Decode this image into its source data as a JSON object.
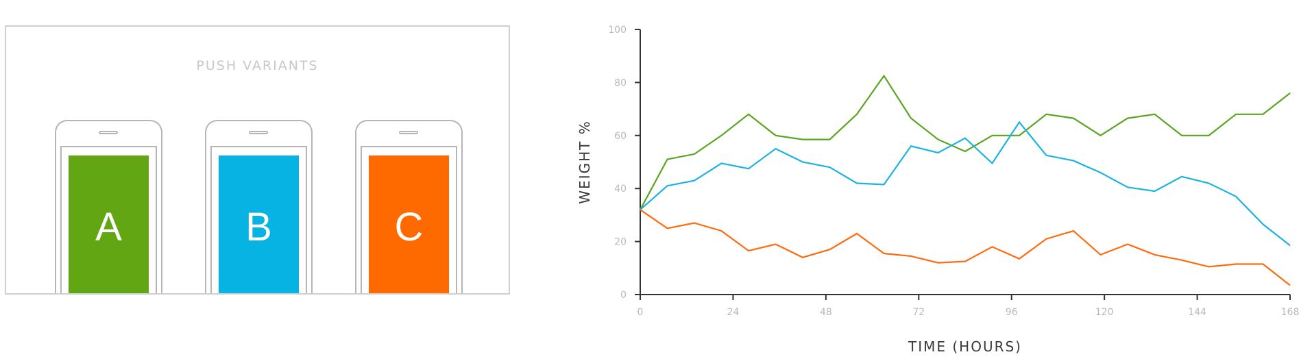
{
  "variants_panel": {
    "title": "PUSH VARIANTS",
    "variants": [
      {
        "label": "A",
        "color": "#62a613"
      },
      {
        "label": "B",
        "color": "#06b3e2"
      },
      {
        "label": "C",
        "color": "#ff6a00"
      }
    ]
  },
  "chart_data": {
    "type": "line",
    "xlabel": "TIME (HOURS)",
    "ylabel": "WEIGHT %",
    "xlim": [
      0,
      168
    ],
    "ylim": [
      0,
      100
    ],
    "xticks": [
      0,
      24,
      48,
      72,
      96,
      120,
      144,
      168
    ],
    "yticks": [
      0,
      20,
      40,
      60,
      80,
      100
    ],
    "grid": false,
    "legend": "none",
    "x": [
      0,
      7,
      14,
      21,
      28,
      35,
      42,
      49,
      56,
      63,
      70,
      77,
      84,
      91,
      98,
      105,
      112,
      119,
      126,
      133,
      140,
      147,
      154,
      161,
      168
    ],
    "series": [
      {
        "color": "#5aa51e",
        "values": [
          32,
          51,
          53,
          60,
          68,
          60,
          58.5,
          58.5,
          68,
          82.5,
          66.5,
          58.5,
          54,
          60,
          60,
          68,
          66.5,
          60,
          66.5,
          68,
          60,
          60,
          68,
          68,
          76
        ]
      },
      {
        "color": "#1bb3e0",
        "values": [
          32,
          41,
          43,
          49.5,
          47.5,
          55,
          50,
          48,
          42,
          41.5,
          56,
          53.5,
          59,
          49.5,
          65,
          52.5,
          50.5,
          46,
          40.5,
          39,
          44.5,
          42,
          37,
          26.5,
          18.5
        ]
      },
      {
        "color": "#ff6a0d",
        "values": [
          32,
          25,
          27,
          24,
          16.5,
          19,
          14,
          17,
          23,
          15.5,
          14.5,
          12,
          12.5,
          18,
          13.5,
          21,
          24,
          15,
          19,
          15,
          13,
          10.5,
          11.5,
          11.5,
          3.5
        ]
      }
    ]
  }
}
